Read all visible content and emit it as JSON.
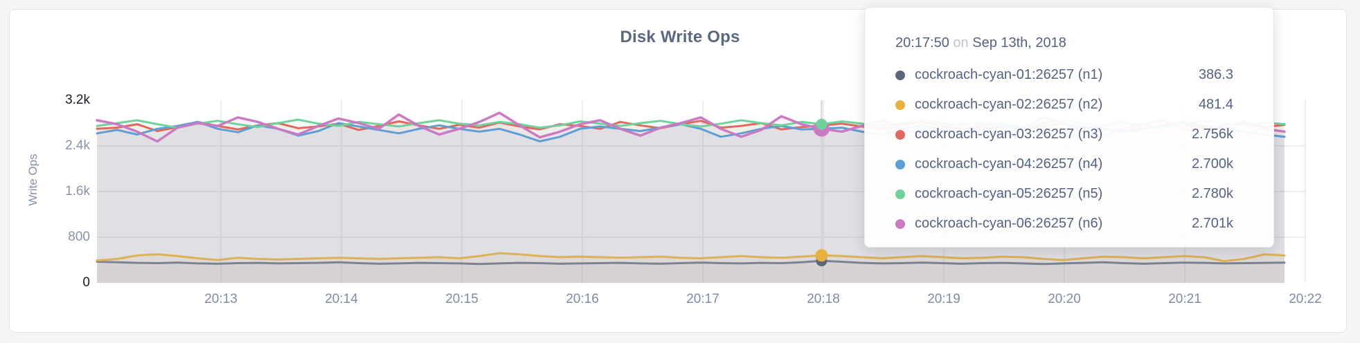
{
  "window": {
    "background": "#f4f5f6"
  },
  "card": {
    "background": "#ffffff",
    "border_color": "#e4e4e6"
  },
  "chart": {
    "title": "Disk Write Ops",
    "title_color": "#5b6882",
    "y_axis_label": "Write Ops"
  },
  "tooltip": {
    "time": "20:17:50",
    "on_word": "on",
    "date": "Sep 13th, 2018",
    "rows": [
      {
        "name": "cockroach-cyan-01:26257 (n1)",
        "value": "386.3",
        "color": "#5c6779"
      },
      {
        "name": "cockroach-cyan-02:26257 (n2)",
        "value": "481.4",
        "color": "#e6b13f"
      },
      {
        "name": "cockroach-cyan-03:26257 (n3)",
        "value": "2.756k",
        "color": "#e0685e"
      },
      {
        "name": "cockroach-cyan-04:26257 (n4)",
        "value": "2.700k",
        "color": "#5f9ed2"
      },
      {
        "name": "cockroach-cyan-05:26257 (n5)",
        "value": "2.780k",
        "color": "#6fd19b"
      },
      {
        "name": "cockroach-cyan-06:26257 (n6)",
        "value": "2.701k",
        "color": "#ca7ac2"
      }
    ]
  },
  "chart_data": {
    "type": "area",
    "title": "Disk Write Ops",
    "xlabel": "",
    "ylabel": "Write Ops",
    "ylim": [
      0,
      3200
    ],
    "grid": true,
    "legend_position": "tooltip",
    "x_start_time": "20:12:00",
    "x_step_seconds": 10,
    "x_tick_labels": [
      "20:13",
      "20:14",
      "20:15",
      "20:16",
      "20:17",
      "20:18",
      "20:19",
      "20:20",
      "20:21",
      "20:22"
    ],
    "y_ticks": [
      {
        "value": 3200,
        "label": "3.2k",
        "emphasized": true
      },
      {
        "value": 2400,
        "label": "2.4k",
        "emphasized": false
      },
      {
        "value": 1600,
        "label": "1.6k",
        "emphasized": false
      },
      {
        "value": 800,
        "label": "800",
        "emphasized": false
      },
      {
        "value": 0,
        "label": "0",
        "emphasized": true
      }
    ],
    "hover": {
      "index": 36,
      "time": "20:17:50",
      "date": "Sep 13th, 2018"
    },
    "series": [
      {
        "name": "cockroach-cyan-01:26257 (n1)",
        "node": "n1",
        "color": "#7b8294",
        "dot_color": "#5c6779",
        "hover_value": 386.3,
        "hover_value_label": "386.3",
        "values": [
          370,
          360,
          350,
          345,
          355,
          340,
          335,
          345,
          350,
          340,
          345,
          350,
          360,
          345,
          335,
          340,
          350,
          345,
          340,
          330,
          340,
          350,
          345,
          335,
          340,
          345,
          350,
          340,
          335,
          345,
          355,
          345,
          340,
          350,
          345,
          360,
          386.3,
          370,
          350,
          340,
          345,
          355,
          345,
          335,
          345,
          350,
          340,
          330,
          340,
          350,
          360,
          345,
          335,
          345,
          355,
          350,
          340,
          345,
          350,
          355
        ]
      },
      {
        "name": "cockroach-cyan-02:26257 (n2)",
        "node": "n2",
        "color": "#dcb156",
        "dot_color": "#e6b13f",
        "hover_value": 481.4,
        "hover_value_label": "481.4",
        "values": [
          390,
          420,
          480,
          500,
          470,
          430,
          400,
          440,
          420,
          410,
          420,
          430,
          440,
          430,
          420,
          430,
          440,
          450,
          430,
          470,
          520,
          500,
          470,
          450,
          460,
          450,
          440,
          450,
          460,
          440,
          430,
          450,
          470,
          450,
          440,
          460,
          481.4,
          470,
          450,
          430,
          450,
          470,
          450,
          430,
          440,
          460,
          450,
          420,
          400,
          430,
          460,
          450,
          430,
          450,
          470,
          450,
          380,
          420,
          500,
          480
        ]
      },
      {
        "name": "cockroach-cyan-03:26257 (n3)",
        "node": "n3",
        "color": "#e0685e",
        "dot_color": "#e0685e",
        "hover_value": 2756,
        "hover_value_label": "2.756k",
        "values": [
          2700,
          2720,
          2780,
          2660,
          2730,
          2820,
          2750,
          2690,
          2760,
          2800,
          2710,
          2740,
          2790,
          2680,
          2750,
          2830,
          2760,
          2700,
          2770,
          2720,
          2810,
          2740,
          2690,
          2780,
          2750,
          2700,
          2820,
          2760,
          2710,
          2780,
          2840,
          2720,
          2750,
          2800,
          2690,
          2730,
          2756,
          2790,
          2740,
          2700,
          2770,
          2820,
          2750,
          2680,
          2760,
          2800,
          2710,
          2750,
          2790,
          2720,
          2760,
          2830,
          2700,
          2740,
          2780,
          2710,
          2760,
          2800,
          2730,
          2770
        ]
      },
      {
        "name": "cockroach-cyan-04:26257 (n4)",
        "node": "n4",
        "color": "#5f9ed2",
        "dot_color": "#5f9ed2",
        "hover_value": 2700,
        "hover_value_label": "2.700k",
        "values": [
          2620,
          2680,
          2600,
          2700,
          2750,
          2820,
          2700,
          2640,
          2760,
          2700,
          2580,
          2660,
          2800,
          2740,
          2680,
          2620,
          2700,
          2760,
          2700,
          2650,
          2700,
          2600,
          2480,
          2560,
          2700,
          2740,
          2700,
          2660,
          2720,
          2780,
          2700,
          2560,
          2620,
          2700,
          2750,
          2690,
          2700,
          2720,
          2650,
          2600,
          2700,
          2760,
          2700,
          2640,
          2700,
          2750,
          2700,
          2620,
          2680,
          2740,
          2700,
          2650,
          2700,
          2770,
          2820,
          2750,
          2700,
          2650,
          2600,
          2560
        ]
      },
      {
        "name": "cockroach-cyan-05:26257 (n5)",
        "node": "n5",
        "color": "#6fd19b",
        "dot_color": "#6fd19b",
        "hover_value": 2780,
        "hover_value_label": "2.780k",
        "values": [
          2750,
          2800,
          2850,
          2780,
          2720,
          2790,
          2840,
          2780,
          2730,
          2800,
          2860,
          2790,
          2750,
          2820,
          2780,
          2740,
          2800,
          2850,
          2790,
          2760,
          2820,
          2780,
          2720,
          2760,
          2830,
          2790,
          2750,
          2800,
          2840,
          2780,
          2740,
          2790,
          2850,
          2800,
          2760,
          2820,
          2780,
          2830,
          2790,
          2750,
          2800,
          2860,
          2800,
          2760,
          2810,
          2780,
          2740,
          2800,
          2850,
          2790,
          2760,
          2810,
          2770,
          2730,
          2790,
          2840,
          2800,
          2760,
          2810,
          2780
        ]
      },
      {
        "name": "cockroach-cyan-06:26257 (n6)",
        "node": "n6",
        "color": "#ca7ac2",
        "dot_color": "#ca7ac2",
        "hover_value": 2701,
        "hover_value_label": "2.701k",
        "values": [
          2850,
          2780,
          2650,
          2480,
          2720,
          2800,
          2750,
          2900,
          2820,
          2700,
          2600,
          2750,
          2880,
          2800,
          2700,
          2950,
          2750,
          2600,
          2700,
          2820,
          2980,
          2760,
          2550,
          2650,
          2780,
          2850,
          2700,
          2580,
          2720,
          2800,
          2900,
          2700,
          2560,
          2680,
          2920,
          2780,
          2701,
          2650,
          2750,
          2850,
          2700,
          2600,
          2720,
          2800,
          2680,
          2580,
          2700,
          2900,
          2800,
          2650,
          2580,
          2700,
          2780,
          2850,
          2700,
          2620,
          2750,
          2820,
          2700,
          2650
        ]
      }
    ]
  }
}
